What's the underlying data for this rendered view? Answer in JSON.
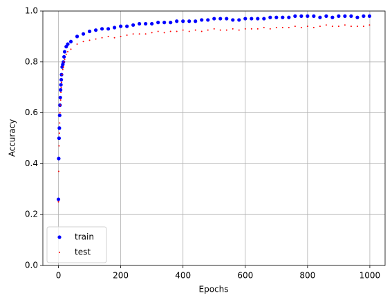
{
  "chart_data": {
    "type": "scatter",
    "x_label": "Epochs",
    "y_label": "Accuracy",
    "x": [
      0,
      1,
      2,
      3,
      4,
      5,
      6,
      7,
      8,
      9,
      10,
      12,
      14,
      16,
      18,
      20,
      25,
      30,
      40,
      60,
      80,
      100,
      120,
      140,
      160,
      180,
      200,
      220,
      240,
      260,
      280,
      300,
      320,
      340,
      360,
      380,
      400,
      420,
      440,
      460,
      480,
      500,
      520,
      540,
      560,
      580,
      600,
      620,
      640,
      660,
      680,
      700,
      720,
      740,
      760,
      780,
      800,
      820,
      840,
      860,
      880,
      900,
      920,
      940,
      960,
      980,
      999
    ],
    "series": [
      {
        "name": "train",
        "color": "#0000ff",
        "values": [
          0.26,
          0.42,
          0.5,
          0.54,
          0.59,
          0.63,
          0.66,
          0.69,
          0.71,
          0.73,
          0.75,
          0.78,
          0.79,
          0.8,
          0.82,
          0.84,
          0.86,
          0.87,
          0.88,
          0.9,
          0.91,
          0.92,
          0.925,
          0.93,
          0.93,
          0.935,
          0.94,
          0.94,
          0.945,
          0.95,
          0.95,
          0.95,
          0.955,
          0.955,
          0.955,
          0.96,
          0.96,
          0.96,
          0.96,
          0.965,
          0.965,
          0.97,
          0.97,
          0.97,
          0.965,
          0.965,
          0.97,
          0.97,
          0.97,
          0.97,
          0.975,
          0.975,
          0.975,
          0.975,
          0.98,
          0.98,
          0.98,
          0.98,
          0.975,
          0.98,
          0.975,
          0.98,
          0.98,
          0.98,
          0.975,
          0.98,
          0.98
        ]
      },
      {
        "name": "test",
        "color": "#ff0000",
        "values": [
          0.25,
          0.37,
          0.47,
          0.52,
          0.56,
          0.6,
          0.63,
          0.65,
          0.68,
          0.7,
          0.72,
          0.75,
          0.77,
          0.78,
          0.8,
          0.81,
          0.83,
          0.84,
          0.85,
          0.87,
          0.88,
          0.885,
          0.89,
          0.895,
          0.9,
          0.895,
          0.9,
          0.905,
          0.91,
          0.91,
          0.91,
          0.915,
          0.92,
          0.915,
          0.92,
          0.92,
          0.925,
          0.92,
          0.925,
          0.92,
          0.925,
          0.93,
          0.925,
          0.925,
          0.93,
          0.925,
          0.93,
          0.93,
          0.93,
          0.935,
          0.93,
          0.935,
          0.935,
          0.935,
          0.94,
          0.935,
          0.94,
          0.935,
          0.94,
          0.945,
          0.94,
          0.94,
          0.945,
          0.94,
          0.94,
          0.94,
          0.945
        ]
      }
    ],
    "xlim": [
      -50,
      1049
    ],
    "ylim": [
      0,
      1
    ],
    "xticks": [
      0,
      200,
      400,
      600,
      800,
      1000
    ],
    "yticks": [
      {
        "value": 0,
        "label": "0.0"
      },
      {
        "value": 0.2,
        "label": "0.2"
      },
      {
        "value": 0.4,
        "label": "0.4"
      },
      {
        "value": 0.6,
        "label": "0.6"
      },
      {
        "value": 0.8,
        "label": "0.8"
      },
      {
        "value": 1,
        "label": "1.0"
      }
    ],
    "grid": true,
    "legend": "lower left"
  }
}
